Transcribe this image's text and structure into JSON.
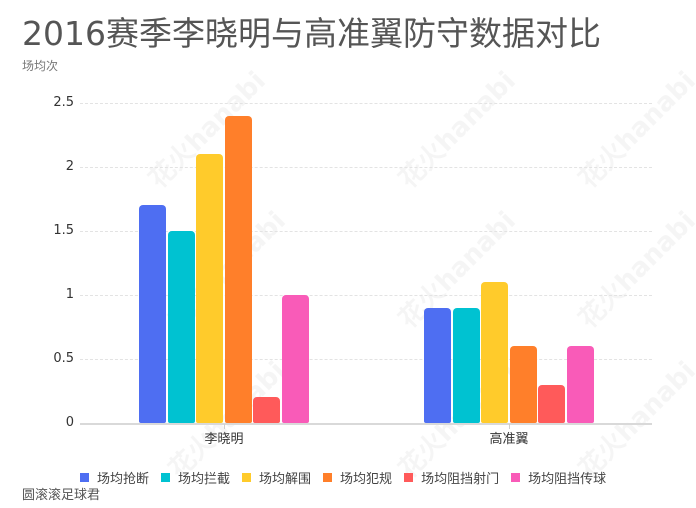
{
  "header": {
    "title": "2016赛季李晓明与高准翼防守数据对比",
    "unit_label": "场均次"
  },
  "footer": {
    "source": "圆滚滚足球君"
  },
  "watermark": "花火hanabi",
  "yaxis": {
    "ticks": [
      "0",
      "0.5",
      "1",
      "1.5",
      "2",
      "2.5"
    ]
  },
  "xaxis": {
    "categories": [
      "李晓明",
      "高准翼"
    ]
  },
  "legend": [
    {
      "label": "场均抢断",
      "color": "#4e6ef2"
    },
    {
      "label": "场均拦截",
      "color": "#00c2d1"
    },
    {
      "label": "场均解围",
      "color": "#ffcb2b"
    },
    {
      "label": "场均犯规",
      "color": "#ff7f2a"
    },
    {
      "label": "场均阻挡射门",
      "color": "#ff5a5a"
    },
    {
      "label": "场均阻挡传球",
      "color": "#f95bb8"
    }
  ],
  "chart_data": {
    "type": "bar",
    "title": "2016赛季李晓明与高准翼防守数据对比",
    "subtitle": "",
    "xlabel": "",
    "ylabel": "场均次",
    "categories": [
      "李晓明",
      "高准翼"
    ],
    "series": [
      {
        "name": "场均抢断",
        "color": "#4e6ef2",
        "values": [
          1.7,
          0.9
        ]
      },
      {
        "name": "场均拦截",
        "color": "#00c2d1",
        "values": [
          1.5,
          0.9
        ]
      },
      {
        "name": "场均解围",
        "color": "#ffcb2b",
        "values": [
          2.1,
          1.1
        ]
      },
      {
        "name": "场均犯规",
        "color": "#ff7f2a",
        "values": [
          2.4,
          0.6
        ]
      },
      {
        "name": "场均阻挡射门",
        "color": "#ff5a5a",
        "values": [
          0.2,
          0.3
        ]
      },
      {
        "name": "场均阻挡传球",
        "color": "#f95bb8",
        "values": [
          1.0,
          0.6
        ]
      }
    ],
    "ylim": [
      0,
      2.5
    ],
    "yticks": [
      0,
      0.5,
      1,
      1.5,
      2,
      2.5
    ],
    "grid": true,
    "legend_position": "bottom",
    "source": "圆滚滚足球君"
  }
}
